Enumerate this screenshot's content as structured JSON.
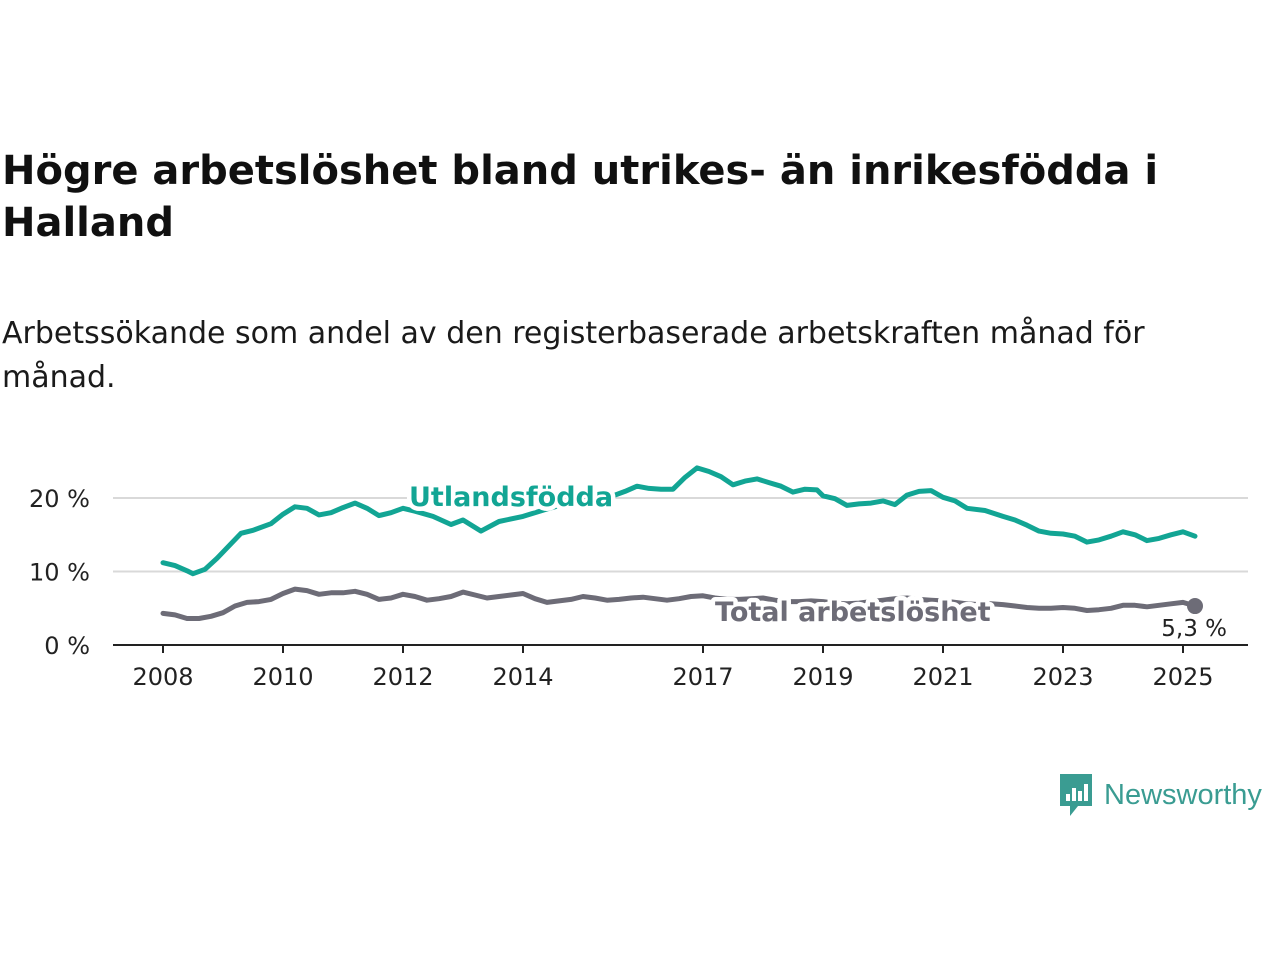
{
  "title": "Högre arbetslöshet bland utrikes- än inrikesfödda i Halland",
  "subtitle": "Arbetssökande som andel av den registerbaserade arbetskraften månad för månad.",
  "brand": {
    "name": "Newsworthy",
    "color": "#3a9c92",
    "icon": "newsworthy-logo-icon"
  },
  "colors": {
    "foreign": "#12a594",
    "total": "#6d6c77",
    "grid": "#d9d9d9",
    "axis": "#222222"
  },
  "chart_data": {
    "type": "line",
    "title": "Högre arbetslöshet bland utrikes- än inrikesfödda i Halland",
    "subtitle": "Arbetssökande som andel av den registerbaserade arbetskraften månad för månad.",
    "xlabel": "",
    "ylabel": "",
    "x_ticks": [
      "2008",
      "2010",
      "2012",
      "2014",
      "2017",
      "2019",
      "2021",
      "2023",
      "2025"
    ],
    "y_ticks": [
      "0 %",
      "10 %",
      "20 %"
    ],
    "ylim": [
      0,
      25
    ],
    "xlim": [
      2008,
      2025.5
    ],
    "grid": true,
    "end_label": "5,3 %",
    "series": [
      {
        "name": "Utlandsfödda",
        "color": "#12a594",
        "points": [
          [
            2008.0,
            11.2
          ],
          [
            2008.2,
            10.8
          ],
          [
            2008.4,
            10.1
          ],
          [
            2008.5,
            9.7
          ],
          [
            2008.7,
            10.3
          ],
          [
            2008.9,
            11.8
          ],
          [
            2009.1,
            13.5
          ],
          [
            2009.3,
            15.2
          ],
          [
            2009.5,
            15.6
          ],
          [
            2009.8,
            16.5
          ],
          [
            2010.0,
            17.8
          ],
          [
            2010.2,
            18.8
          ],
          [
            2010.4,
            18.6
          ],
          [
            2010.6,
            17.7
          ],
          [
            2010.8,
            18.0
          ],
          [
            2011.0,
            18.7
          ],
          [
            2011.2,
            19.3
          ],
          [
            2011.4,
            18.6
          ],
          [
            2011.6,
            17.6
          ],
          [
            2011.8,
            18.0
          ],
          [
            2012.0,
            18.6
          ],
          [
            2012.2,
            18.2
          ],
          [
            2012.5,
            17.5
          ],
          [
            2012.8,
            16.4
          ],
          [
            2013.0,
            17.0
          ],
          [
            2013.3,
            15.5
          ],
          [
            2013.6,
            16.8
          ],
          [
            2014.0,
            17.5
          ],
          [
            2014.4,
            18.5
          ],
          [
            2014.8,
            19.4
          ],
          [
            2015.0,
            20.1
          ],
          [
            2015.3,
            20.6
          ],
          [
            2015.5,
            20.3
          ],
          [
            2015.7,
            20.9
          ],
          [
            2015.9,
            21.6
          ],
          [
            2016.1,
            21.3
          ],
          [
            2016.3,
            21.2
          ],
          [
            2016.5,
            21.2
          ],
          [
            2016.7,
            22.8
          ],
          [
            2016.9,
            24.1
          ],
          [
            2017.1,
            23.6
          ],
          [
            2017.3,
            22.9
          ],
          [
            2017.5,
            21.8
          ],
          [
            2017.7,
            22.3
          ],
          [
            2017.9,
            22.6
          ],
          [
            2018.1,
            22.1
          ],
          [
            2018.3,
            21.6
          ],
          [
            2018.5,
            20.8
          ],
          [
            2018.7,
            21.2
          ],
          [
            2018.9,
            21.1
          ],
          [
            2019.0,
            20.3
          ],
          [
            2019.2,
            19.9
          ],
          [
            2019.4,
            19.0
          ],
          [
            2019.6,
            19.2
          ],
          [
            2019.8,
            19.3
          ],
          [
            2020.0,
            19.6
          ],
          [
            2020.2,
            19.1
          ],
          [
            2020.4,
            20.4
          ],
          [
            2020.6,
            20.9
          ],
          [
            2020.8,
            21.0
          ],
          [
            2021.0,
            20.1
          ],
          [
            2021.2,
            19.6
          ],
          [
            2021.4,
            18.6
          ],
          [
            2021.7,
            18.3
          ],
          [
            2022.0,
            17.5
          ],
          [
            2022.2,
            17.0
          ],
          [
            2022.4,
            16.3
          ],
          [
            2022.6,
            15.5
          ],
          [
            2022.8,
            15.2
          ],
          [
            2023.0,
            15.1
          ],
          [
            2023.2,
            14.8
          ],
          [
            2023.4,
            14.0
          ],
          [
            2023.6,
            14.3
          ],
          [
            2023.8,
            14.8
          ],
          [
            2024.0,
            15.4
          ],
          [
            2024.2,
            15.0
          ],
          [
            2024.4,
            14.2
          ],
          [
            2024.6,
            14.5
          ],
          [
            2024.8,
            15.0
          ],
          [
            2025.0,
            15.4
          ],
          [
            2025.2,
            14.8
          ]
        ]
      },
      {
        "name": "Total arbetslöshet",
        "color": "#6d6c77",
        "points": [
          [
            2008.0,
            4.3
          ],
          [
            2008.2,
            4.1
          ],
          [
            2008.4,
            3.6
          ],
          [
            2008.6,
            3.6
          ],
          [
            2008.8,
            3.9
          ],
          [
            2009.0,
            4.4
          ],
          [
            2009.2,
            5.3
          ],
          [
            2009.4,
            5.8
          ],
          [
            2009.6,
            5.9
          ],
          [
            2009.8,
            6.2
          ],
          [
            2010.0,
            7.0
          ],
          [
            2010.2,
            7.6
          ],
          [
            2010.4,
            7.4
          ],
          [
            2010.6,
            6.9
          ],
          [
            2010.8,
            7.1
          ],
          [
            2011.0,
            7.1
          ],
          [
            2011.2,
            7.3
          ],
          [
            2011.4,
            6.9
          ],
          [
            2011.6,
            6.2
          ],
          [
            2011.8,
            6.4
          ],
          [
            2012.0,
            6.9
          ],
          [
            2012.2,
            6.6
          ],
          [
            2012.4,
            6.1
          ],
          [
            2012.6,
            6.3
          ],
          [
            2012.8,
            6.6
          ],
          [
            2013.0,
            7.2
          ],
          [
            2013.2,
            6.8
          ],
          [
            2013.4,
            6.4
          ],
          [
            2013.6,
            6.6
          ],
          [
            2013.8,
            6.8
          ],
          [
            2014.0,
            7.0
          ],
          [
            2014.2,
            6.3
          ],
          [
            2014.4,
            5.8
          ],
          [
            2014.6,
            6.0
          ],
          [
            2014.8,
            6.2
          ],
          [
            2015.0,
            6.6
          ],
          [
            2015.2,
            6.4
          ],
          [
            2015.4,
            6.1
          ],
          [
            2015.6,
            6.2
          ],
          [
            2015.8,
            6.4
          ],
          [
            2016.0,
            6.5
          ],
          [
            2016.2,
            6.3
          ],
          [
            2016.4,
            6.1
          ],
          [
            2016.6,
            6.3
          ],
          [
            2016.8,
            6.6
          ],
          [
            2017.0,
            6.7
          ],
          [
            2017.2,
            6.4
          ],
          [
            2017.4,
            6.2
          ],
          [
            2017.6,
            6.2
          ],
          [
            2017.8,
            6.3
          ],
          [
            2018.0,
            6.4
          ],
          [
            2018.2,
            6.1
          ],
          [
            2018.4,
            5.9
          ],
          [
            2018.6,
            5.9
          ],
          [
            2018.8,
            6.0
          ],
          [
            2019.0,
            5.9
          ],
          [
            2019.2,
            5.7
          ],
          [
            2019.4,
            5.6
          ],
          [
            2019.6,
            5.7
          ],
          [
            2019.8,
            5.9
          ],
          [
            2020.0,
            6.1
          ],
          [
            2020.2,
            6.3
          ],
          [
            2020.4,
            6.4
          ],
          [
            2020.6,
            6.2
          ],
          [
            2020.8,
            6.1
          ],
          [
            2021.0,
            6.0
          ],
          [
            2021.2,
            5.8
          ],
          [
            2021.4,
            5.6
          ],
          [
            2021.6,
            5.5
          ],
          [
            2021.8,
            5.6
          ],
          [
            2022.0,
            5.5
          ],
          [
            2022.2,
            5.3
          ],
          [
            2022.4,
            5.1
          ],
          [
            2022.6,
            5.0
          ],
          [
            2022.8,
            5.0
          ],
          [
            2023.0,
            5.1
          ],
          [
            2023.2,
            5.0
          ],
          [
            2023.4,
            4.7
          ],
          [
            2023.6,
            4.8
          ],
          [
            2023.8,
            5.0
          ],
          [
            2024.0,
            5.4
          ],
          [
            2024.2,
            5.4
          ],
          [
            2024.4,
            5.2
          ],
          [
            2024.6,
            5.4
          ],
          [
            2024.8,
            5.6
          ],
          [
            2025.0,
            5.8
          ],
          [
            2025.2,
            5.3
          ]
        ]
      }
    ]
  }
}
